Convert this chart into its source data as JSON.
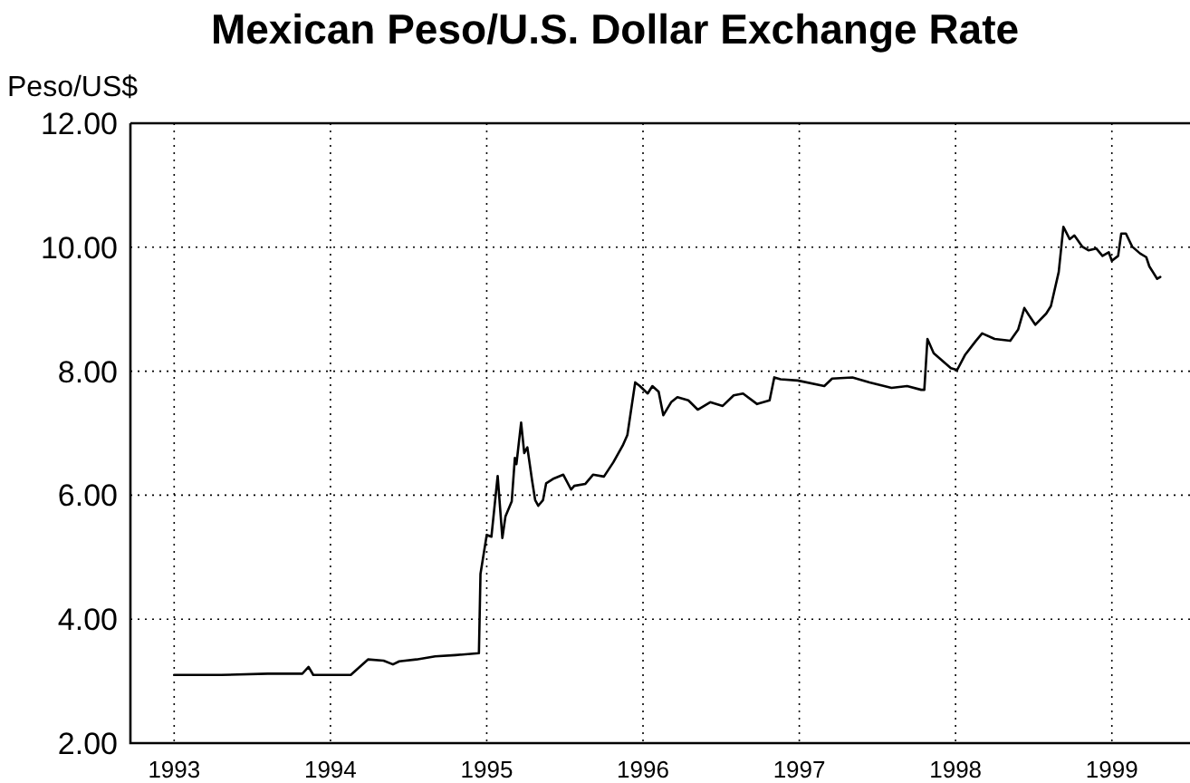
{
  "chart_data": {
    "type": "line",
    "title": "Mexican Peso/U.S. Dollar Exchange Rate",
    "ylabel": "Peso/US$",
    "xlim": [
      1992.72,
      1999.5
    ],
    "xticks": [
      1993,
      1994,
      1995,
      1996,
      1997,
      1998,
      1999
    ],
    "ylim": [
      2,
      12
    ],
    "yticks": [
      {
        "value": 2,
        "label": "2.00"
      },
      {
        "value": 4,
        "label": "4.00"
      },
      {
        "value": 6,
        "label": "6.00"
      },
      {
        "value": 8,
        "label": "8.00"
      },
      {
        "value": 10,
        "label": "10.00"
      },
      {
        "value": 12,
        "label": "12.00"
      }
    ],
    "grid": true,
    "marker": "none",
    "series": [
      {
        "color": "#000000",
        "x": [
          1993.0,
          1993.3,
          1993.6,
          1993.82,
          1993.86,
          1993.89,
          1994.13,
          1994.24,
          1994.34,
          1994.4,
          1994.44,
          1994.55,
          1994.67,
          1994.8,
          1994.95,
          1994.96,
          1995.0,
          1995.03,
          1995.07,
          1995.1,
          1995.12,
          1995.16,
          1995.18,
          1995.19,
          1995.22,
          1995.24,
          1995.26,
          1995.29,
          1995.31,
          1995.33,
          1995.36,
          1995.38,
          1995.43,
          1995.49,
          1995.54,
          1995.56,
          1995.63,
          1995.68,
          1995.75,
          1995.81,
          1995.87,
          1995.9,
          1995.95,
          1995.98,
          1996.03,
          1996.06,
          1996.1,
          1996.13,
          1996.18,
          1996.22,
          1996.29,
          1996.35,
          1996.43,
          1996.51,
          1996.58,
          1996.64,
          1996.73,
          1996.81,
          1996.84,
          1996.88,
          1996.99,
          1997.16,
          1997.21,
          1997.34,
          1997.45,
          1997.59,
          1997.69,
          1997.78,
          1997.8,
          1997.82,
          1997.86,
          1997.97,
          1998.01,
          1998.06,
          1998.13,
          1998.17,
          1998.25,
          1998.35,
          1998.4,
          1998.44,
          1998.47,
          1998.51,
          1998.58,
          1998.61,
          1998.66,
          1998.69,
          1998.73,
          1998.76,
          1998.81,
          1998.85,
          1998.9,
          1998.94,
          1998.98,
          1999.0,
          1999.04,
          1999.06,
          1999.09,
          1999.13,
          1999.18,
          1999.22,
          1999.24,
          1999.29,
          1999.31
        ],
        "values": [
          3.1,
          3.1,
          3.12,
          3.12,
          3.23,
          3.1,
          3.1,
          3.35,
          3.33,
          3.27,
          3.32,
          3.35,
          3.4,
          3.42,
          3.45,
          4.73,
          5.36,
          5.33,
          6.31,
          5.31,
          5.66,
          5.9,
          6.6,
          6.5,
          7.17,
          6.68,
          6.77,
          6.24,
          5.92,
          5.83,
          5.92,
          6.19,
          6.27,
          6.33,
          6.09,
          6.15,
          6.18,
          6.33,
          6.3,
          6.53,
          6.8,
          6.97,
          7.82,
          7.76,
          7.64,
          7.76,
          7.67,
          7.29,
          7.5,
          7.58,
          7.53,
          7.38,
          7.5,
          7.44,
          7.61,
          7.64,
          7.47,
          7.53,
          7.9,
          7.87,
          7.85,
          7.76,
          7.88,
          7.9,
          7.82,
          7.73,
          7.76,
          7.7,
          7.7,
          8.52,
          8.29,
          8.05,
          8.02,
          8.26,
          8.49,
          8.61,
          8.52,
          8.49,
          8.67,
          9.02,
          8.9,
          8.75,
          8.93,
          9.05,
          9.6,
          10.33,
          10.13,
          10.19,
          10.01,
          9.95,
          9.98,
          9.86,
          9.92,
          9.78,
          9.86,
          10.22,
          10.22,
          10.01,
          9.9,
          9.84,
          9.69,
          9.49,
          9.52
        ]
      }
    ]
  }
}
